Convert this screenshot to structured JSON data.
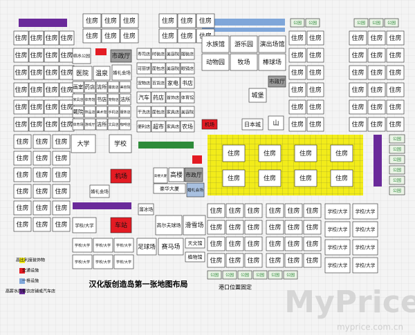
{
  "title": "汉化版创造岛第一张地图布局",
  "note": "港口位置固定",
  "watermark": {
    "brand": "MyPrice",
    "site": "myprice.com.cn"
  },
  "legend": [
    {
      "label": "高比利度装饰物",
      "color": "#f2ec1a"
    },
    {
      "label": "交通设施",
      "color": "#e31b23"
    },
    {
      "label": "一格设施",
      "color": "#7fa6d9"
    },
    {
      "label": "高薪水的餐饮店铺或汽车店",
      "color": "#6a2a9a"
    }
  ],
  "grids": [
    {
      "labels": [
        "住房",
        "住房",
        "住房",
        "住房",
        "住房",
        "住房",
        "住房",
        "住房",
        "住房",
        "住房",
        "住房",
        "住房",
        "住房",
        "住房",
        "住房",
        "住房",
        "住房",
        "住房",
        "住房",
        "住房",
        "住房",
        "住房",
        "住房",
        "住房"
      ]
    },
    {
      "labels": [
        "住房",
        "住房",
        "住房",
        "住房",
        "住房",
        "住房",
        "住房",
        "住房",
        "住房",
        "住房",
        "住房",
        "住房",
        "住房",
        "住房",
        "住房",
        "住房",
        "住房",
        "住房"
      ]
    },
    {
      "labels": [
        "住房",
        "住房",
        "住房",
        "住房",
        "住房",
        "住房"
      ]
    },
    {
      "labels": [
        "住房",
        "住房",
        "住房",
        "住房",
        "住房",
        "住房"
      ]
    },
    {
      "labels": [
        "住房",
        "住房",
        "住房",
        "住房",
        "住房",
        "住房",
        "住房",
        "住房",
        "住房",
        "住房",
        "住房",
        "住房"
      ]
    },
    {
      "labels": [
        "住房",
        "住房",
        "住房",
        "住房",
        "住房",
        "住房",
        "住房",
        "住房",
        "住房",
        "住房",
        "住房",
        "住房",
        "住房",
        "住房",
        "住房",
        "住房",
        "住房",
        "住房"
      ]
    },
    {
      "labels": [
        "住房",
        "住房",
        "住房",
        "住房",
        "住房",
        "住房",
        "住房",
        "住房"
      ]
    },
    {
      "labels": [
        "住房",
        "住房",
        "住房",
        "住房",
        "住房",
        "住房",
        "住房",
        "住房",
        "住房",
        "住房",
        "住房",
        "住房"
      ]
    },
    {
      "labels": [
        "住房",
        "住房",
        "住房",
        "住房",
        "住房",
        "住房",
        "住房",
        "住房",
        "住房",
        "住房",
        "住房",
        "住房"
      ]
    },
    {
      "labels": [
        "学校/大学",
        "学校/大学",
        "学校/大学",
        "学校/大学",
        "学校/大学",
        "学校/大学",
        "学校/大学",
        "学校/大学"
      ]
    },
    {
      "labels": [
        "学校/大学",
        "学校/大学",
        "学校/大学",
        "学校/大学",
        "学校/大学",
        "学校/大学"
      ]
    },
    {
      "labels": [
        "水族馆",
        "游乐园",
        "演出场馆",
        "动物园",
        "牧场",
        "棒球场"
      ]
    },
    {
      "labels": [
        "公园",
        "公园"
      ]
    },
    {
      "labels": [
        "公园",
        "公园",
        "公园"
      ]
    },
    {
      "labels": [
        "公园",
        "公园",
        "公园",
        "公园",
        "公园",
        "公园"
      ]
    },
    {
      "labels": [
        "公园",
        "公园",
        "公园",
        "公园",
        "公园",
        "公园"
      ]
    },
    {
      "labels": [
        "画室",
        "药店",
        "洁所",
        "服装店",
        "美容院",
        "家具店",
        "体育馆",
        "书店",
        "宠物店",
        "洁所",
        "戴院",
        "饰品店",
        "美术馆",
        "手机店",
        "服饰店",
        "体育场",
        "游戏厅",
        "洁所",
        "文具店",
        "咖啡店"
      ]
    },
    {
      "labels": [
        "寿司店",
        "时装店",
        "美容院",
        "服装店",
        "可丽饼",
        "面包店",
        "美容院",
        "眼镜店",
        "宠物店",
        "百货店",
        "家电",
        "书店",
        "汽车",
        "药店",
        "首饰店",
        "体育馆",
        "干洗店",
        "面包店",
        "家具店",
        "美容院",
        "便利店",
        "超市",
        "家具店",
        "农场"
      ]
    }
  ],
  "singles": [
    {
      "label": "临水公园"
    },
    {
      "label": "市政厅"
    },
    {
      "label": "医院"
    },
    {
      "label": "温泉"
    },
    {
      "label": "婚礼会场"
    },
    {
      "label": "大学"
    },
    {
      "label": "学校"
    },
    {
      "label": "机场"
    },
    {
      "label": "婚礼会场"
    },
    {
      "label": "车站"
    },
    {
      "label": "学校/大学"
    },
    {
      "label": "高楼大厦"
    },
    {
      "label": "高楼"
    },
    {
      "label": "市政厅"
    },
    {
      "label": "豪华大厦"
    },
    {
      "label": "婚礼会场"
    },
    {
      "label": "溜冰场"
    },
    {
      "label": "高尔夫球场"
    },
    {
      "label": "滑雪场"
    },
    {
      "label": "足球场"
    },
    {
      "label": "赛马场"
    },
    {
      "label": "天文馆"
    },
    {
      "label": "植物馆"
    },
    {
      "label": "城堡"
    },
    {
      "label": "市政厅"
    },
    {
      "label": "机场"
    },
    {
      "label": "山"
    },
    {
      "label": "日本城"
    }
  ]
}
